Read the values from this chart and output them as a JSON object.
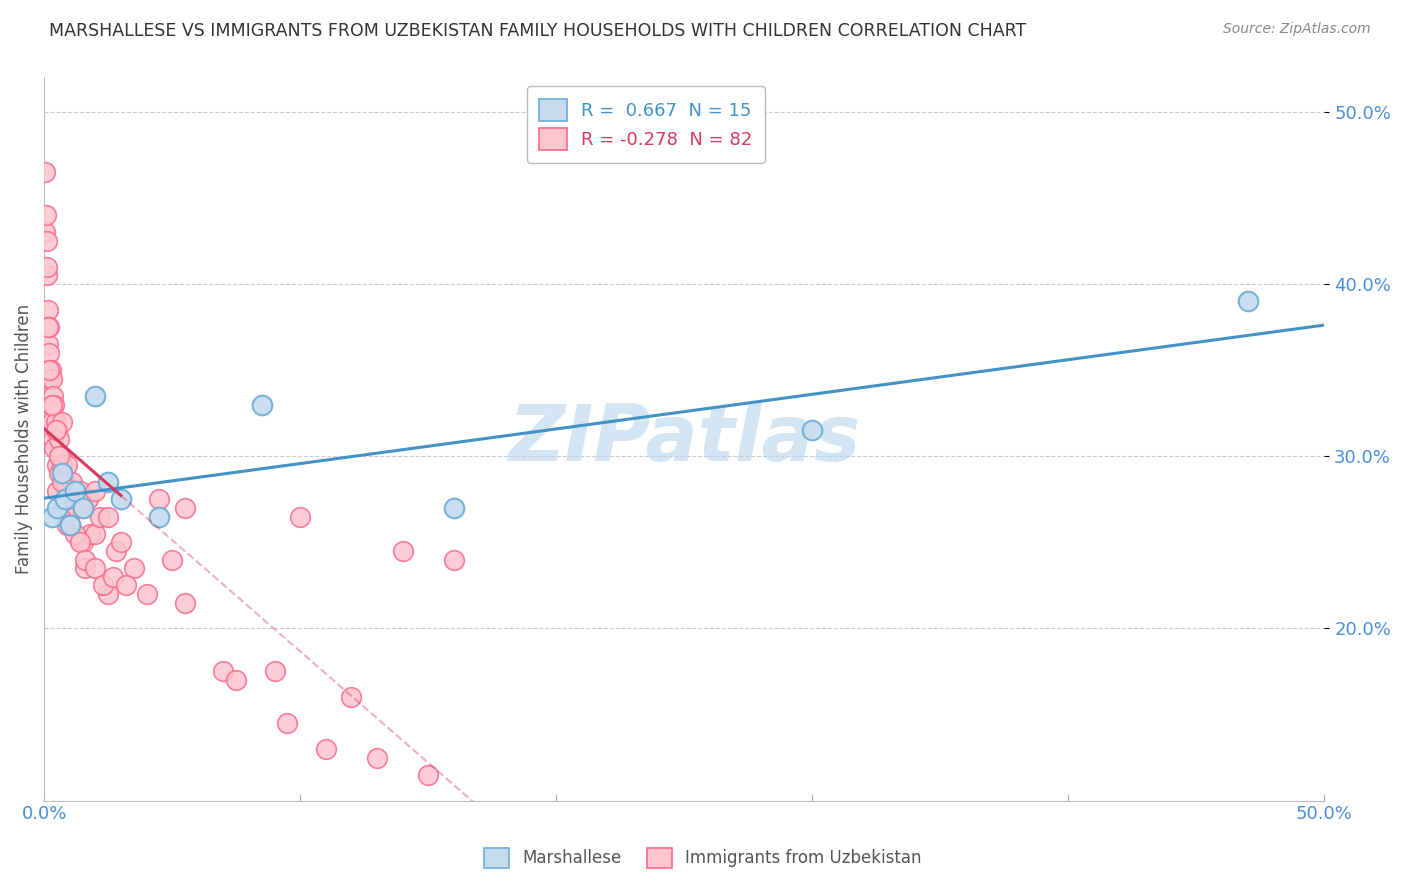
{
  "title": "MARSHALLESE VS IMMIGRANTS FROM UZBEKISTAN FAMILY HOUSEHOLDS WITH CHILDREN CORRELATION CHART",
  "source": "Source: ZipAtlas.com",
  "ylabel": "Family Households with Children",
  "xlim": [
    0.0,
    50.0
  ],
  "ylim": [
    10.0,
    52.0
  ],
  "yticks": [
    20.0,
    30.0,
    40.0,
    50.0
  ],
  "ytick_labels": [
    "20.0%",
    "30.0%",
    "40.0%",
    "50.0%"
  ],
  "blue_color": "#6baed6",
  "blue_fill": "#c6dbef",
  "pink_color": "#fb6a88",
  "pink_fill": "#fcc5cf",
  "line_blue": "#4292c6",
  "line_pink": "#d63a5e",
  "watermark": "ZIPatlas",
  "blue_scatter_x": [
    0.3,
    0.5,
    0.8,
    1.0,
    1.2,
    1.5,
    2.0,
    2.5,
    3.0,
    4.5,
    8.5,
    16.0,
    30.0,
    47.0,
    0.7
  ],
  "blue_scatter_y": [
    26.5,
    27.0,
    27.5,
    26.0,
    28.0,
    27.0,
    33.5,
    28.5,
    27.5,
    26.5,
    33.0,
    27.0,
    31.5,
    39.0,
    29.0
  ],
  "pink_scatter_x": [
    0.05,
    0.05,
    0.08,
    0.1,
    0.1,
    0.12,
    0.15,
    0.15,
    0.18,
    0.2,
    0.2,
    0.25,
    0.25,
    0.3,
    0.3,
    0.35,
    0.35,
    0.4,
    0.4,
    0.45,
    0.5,
    0.5,
    0.5,
    0.6,
    0.6,
    0.65,
    0.7,
    0.7,
    0.8,
    0.8,
    0.9,
    0.9,
    1.0,
    1.0,
    1.1,
    1.2,
    1.3,
    1.4,
    1.5,
    1.5,
    1.6,
    1.7,
    1.8,
    2.0,
    2.0,
    2.2,
    2.5,
    2.5,
    2.8,
    3.0,
    3.5,
    4.5,
    5.0,
    5.5,
    7.0,
    9.0,
    10.0,
    12.0,
    14.0,
    16.0,
    0.15,
    0.2,
    0.3,
    0.45,
    0.6,
    0.7,
    0.9,
    1.0,
    1.2,
    1.4,
    1.6,
    2.0,
    2.3,
    2.7,
    3.2,
    4.0,
    5.5,
    7.5,
    9.5,
    11.0,
    13.0,
    15.0
  ],
  "pink_scatter_y": [
    46.5,
    43.0,
    44.0,
    42.5,
    40.5,
    41.0,
    38.5,
    36.5,
    37.5,
    36.0,
    34.5,
    35.0,
    33.0,
    34.5,
    32.0,
    33.5,
    31.0,
    33.0,
    30.5,
    32.0,
    31.5,
    29.5,
    28.0,
    31.0,
    29.0,
    30.0,
    32.0,
    29.5,
    28.5,
    27.0,
    29.5,
    26.0,
    27.5,
    26.0,
    28.5,
    27.5,
    27.0,
    28.0,
    27.0,
    25.0,
    23.5,
    27.5,
    25.5,
    28.0,
    25.5,
    26.5,
    26.5,
    22.0,
    24.5,
    25.0,
    23.5,
    27.5,
    24.0,
    27.0,
    17.5,
    17.5,
    26.5,
    16.0,
    24.5,
    24.0,
    37.5,
    35.0,
    33.0,
    31.5,
    30.0,
    28.5,
    27.5,
    26.0,
    25.5,
    25.0,
    24.0,
    23.5,
    22.5,
    23.0,
    22.5,
    22.0,
    21.5,
    17.0,
    14.5,
    13.0,
    12.5,
    11.5
  ]
}
